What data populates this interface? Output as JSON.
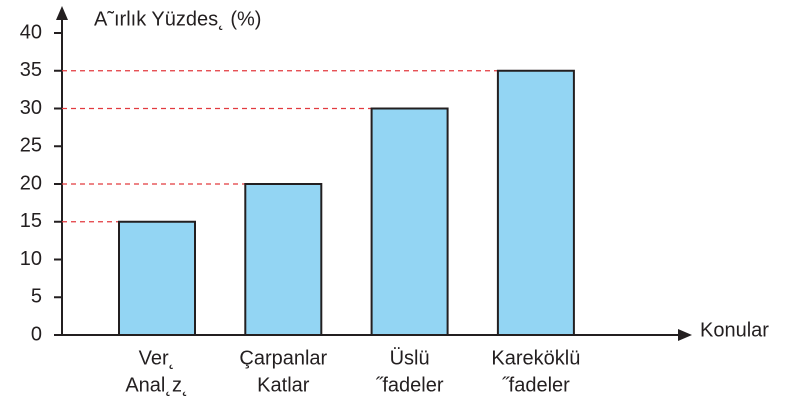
{
  "chart_data": {
    "type": "bar",
    "y_label": "A˜ırlık Yüzdes˛ (%)",
    "x_label": "Konular",
    "categories": [
      [
        "Ver˛",
        "Anal˛z˛"
      ],
      [
        "Çarpanlar",
        "Katlar"
      ],
      [
        "Üslü",
        "˝fadeler"
      ],
      [
        "Kareköklü",
        "˝fadeler"
      ]
    ],
    "values": [
      15,
      20,
      30,
      35
    ],
    "color": "#93d5f3",
    "guide_lines": true,
    "guide_color": "#e23a3f",
    "ylim": [
      0,
      40
    ],
    "yticks": [
      0,
      5,
      10,
      15,
      20,
      25,
      30,
      35,
      40
    ]
  }
}
